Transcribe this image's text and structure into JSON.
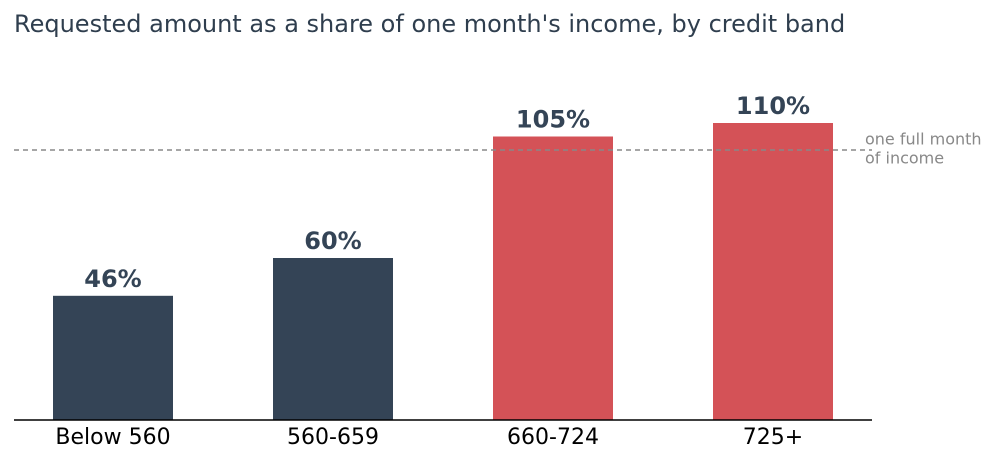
{
  "chart_data": {
    "type": "bar",
    "title": "Requested amount as a share of one month's income, by credit band",
    "categories": [
      "Below 560",
      "560-659",
      "660-724",
      "725+"
    ],
    "values": [
      46,
      60,
      105,
      110
    ],
    "value_labels": [
      "46%",
      "60%",
      "105%",
      "110%"
    ],
    "colors": [
      "#344456",
      "#344456",
      "#d45257",
      "#d45257"
    ],
    "ylim": [
      0,
      120
    ],
    "grid": false,
    "reference_line": {
      "value": 100,
      "label": [
        "one full month",
        "of income"
      ],
      "color": "#888888"
    }
  }
}
